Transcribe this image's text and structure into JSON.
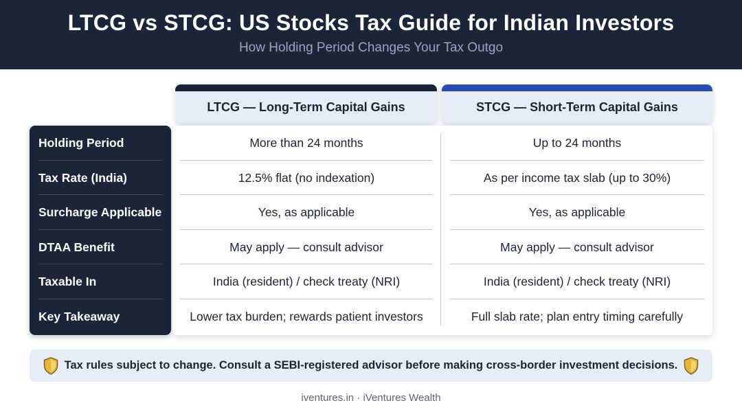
{
  "header": {
    "title": "LTCG vs STCG: US Stocks Tax Guide for Indian Investors",
    "subtitle": "How Holding Period Changes Your Tax Outgo"
  },
  "columns": [
    {
      "label": "LTCG — Long-Term Capital Gains",
      "accent_color": "#1b2438"
    },
    {
      "label": "STCG — Short-Term Capital Gains",
      "accent_color": "#2a4bb0"
    }
  ],
  "rows": [
    {
      "label": "Holding Period",
      "ltcg": "More than 24 months",
      "stcg": "Up to 24 months"
    },
    {
      "label": "Tax Rate (India)",
      "ltcg": "12.5% flat (no indexation)",
      "stcg": "As per income tax slab (up to 30%)"
    },
    {
      "label": "Surcharge Applicable",
      "ltcg": "Yes, as applicable",
      "stcg": "Yes, as applicable"
    },
    {
      "label": "DTAA Benefit",
      "ltcg": "May apply — consult advisor",
      "stcg": "May apply — consult advisor"
    },
    {
      "label": "Taxable In",
      "ltcg": "India (resident) / check treaty (NRI)",
      "stcg": "India (resident) / check treaty (NRI)"
    },
    {
      "label": "Key Takeaway",
      "ltcg": "Lower tax burden; rewards patient investors",
      "stcg": "Full slab rate; plan entry timing carefully"
    }
  ],
  "notice": {
    "text": "Tax rules subject to change. Consult a SEBI-registered advisor before making cross-border investment decisions.",
    "icon": "shield-icon"
  },
  "footer": "iventures.in · iVentures Wealth",
  "colors": {
    "header_bg": "#1b2438",
    "light_panel": "#e6edf7",
    "shield_gold": "#e8b63a"
  }
}
